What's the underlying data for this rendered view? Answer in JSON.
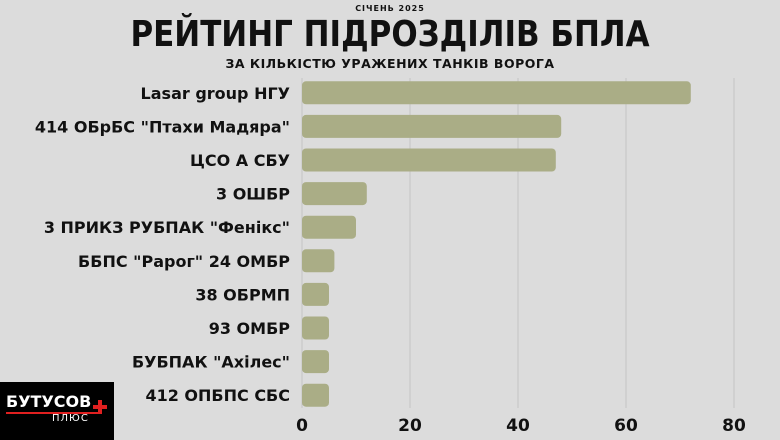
{
  "header": {
    "date": "СІЧЕНЬ 2025",
    "title": "РЕЙТИНГ ПІДРОЗДІЛІВ БПЛА",
    "subtitle": "ЗА КІЛЬКІСТЮ УРАЖЕНИХ ТАНКІВ ВОРОГА"
  },
  "logo": {
    "main": "БУТУСОВ",
    "sub": "ПЛЮС"
  },
  "colors": {
    "bar": "#aaad86",
    "grid": "#c4c4c4",
    "background": "#dcdcdc"
  },
  "chart_data": {
    "type": "bar",
    "orientation": "horizontal",
    "title": "РЕЙТИНГ ПІДРОЗДІЛІВ БПЛА",
    "subtitle": "ЗА КІЛЬКІСТЮ УРАЖЕНИХ ТАНКІВ ВОРОГА",
    "categories": [
      "Lasar group НГУ",
      "414 ОБрБС \"Птахи Мадяра\"",
      "ЦСО А СБУ",
      "3 ОШБР",
      "3 ПРИКЗ РУБПАК \"Фенікс\"",
      "ББПС \"Рарог\" 24 ОМБР",
      "38 ОБРМП",
      "93 ОМБР",
      "БУБПАК \"Ахілес\"",
      "412 ОПБПС СБС"
    ],
    "values": [
      72,
      48,
      47,
      12,
      10,
      6,
      5,
      5,
      5,
      5
    ],
    "xlim": [
      0,
      80
    ],
    "xticks": [
      "0",
      "20",
      "40",
      "60",
      "80"
    ],
    "xlabel": "",
    "ylabel": "",
    "grid": "vertical"
  }
}
